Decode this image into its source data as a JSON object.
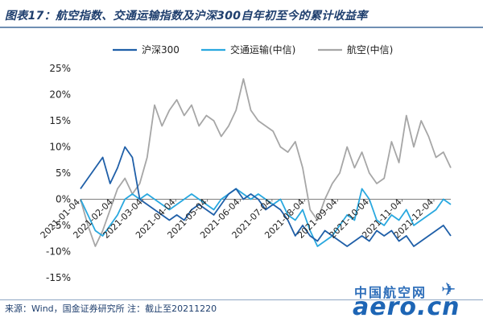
{
  "header": {
    "title": "图表17：航空指数、交通运输指数及沪深300自年初至今的累计收益率"
  },
  "footer": {
    "source": "来源：Wind，国金证券研究所  注：截止至20211220"
  },
  "watermark": {
    "cn": "中国航空网",
    "en": "aero.cn"
  },
  "chart_data": {
    "type": "line",
    "title": "",
    "xlabel": "",
    "ylabel": "",
    "ylim": [
      -15,
      25
    ],
    "yticks": [
      25,
      20,
      15,
      10,
      5,
      0,
      -5,
      -10,
      -15
    ],
    "ytick_labels": [
      "25%",
      "20%",
      "15%",
      "10%",
      "5%",
      "0%",
      "-5%",
      "-10%",
      "-15%"
    ],
    "x_tick_labels": [
      "2021-01-04",
      "2021-02-04",
      "2021-03-04",
      "2021-04-04",
      "2021-05-04",
      "2021-06-04",
      "2021-07-04",
      "2021-08-04",
      "2021-09-04",
      "2021-10-04",
      "2021-11-04",
      "2021-12-04"
    ],
    "grid": false,
    "legend_position": "top",
    "series": [
      {
        "name": "沪深300",
        "color": "#1f5fa8",
        "x": [
          "2021-01-04",
          "2021-01-11",
          "2021-01-18",
          "2021-01-25",
          "2021-02-01",
          "2021-02-08",
          "2021-02-15",
          "2021-02-22",
          "2021-03-01",
          "2021-03-08",
          "2021-03-15",
          "2021-03-22",
          "2021-03-29",
          "2021-04-05",
          "2021-04-12",
          "2021-04-19",
          "2021-04-26",
          "2021-05-03",
          "2021-05-10",
          "2021-05-17",
          "2021-05-24",
          "2021-05-31",
          "2021-06-07",
          "2021-06-14",
          "2021-06-21",
          "2021-06-28",
          "2021-07-05",
          "2021-07-12",
          "2021-07-19",
          "2021-07-26",
          "2021-08-02",
          "2021-08-09",
          "2021-08-16",
          "2021-08-23",
          "2021-08-30",
          "2021-09-06",
          "2021-09-13",
          "2021-09-20",
          "2021-09-27",
          "2021-10-04",
          "2021-10-11",
          "2021-10-18",
          "2021-10-25",
          "2021-11-01",
          "2021-11-08",
          "2021-11-15",
          "2021-11-22",
          "2021-11-29",
          "2021-12-06",
          "2021-12-13",
          "2021-12-20"
        ],
        "values": [
          2,
          4,
          6,
          8,
          3,
          6,
          10,
          8,
          0,
          -1,
          -2,
          -3,
          -4,
          -3,
          -4,
          -2,
          -1,
          -2,
          -3,
          -1,
          1,
          2,
          0,
          1,
          0,
          -2,
          -1,
          -2,
          -4,
          -7,
          -5,
          -7,
          -8,
          -6,
          -7,
          -8,
          -9,
          -8,
          -7,
          -8,
          -6,
          -7,
          -6,
          -8,
          -7,
          -9,
          -8,
          -7,
          -6,
          -5,
          -7
        ]
      },
      {
        "name": "交通运输(中信)",
        "color": "#29a8df",
        "x": [
          "2021-01-04",
          "2021-01-11",
          "2021-01-18",
          "2021-01-25",
          "2021-02-01",
          "2021-02-08",
          "2021-02-15",
          "2021-02-22",
          "2021-03-01",
          "2021-03-08",
          "2021-03-15",
          "2021-03-22",
          "2021-03-29",
          "2021-04-05",
          "2021-04-12",
          "2021-04-19",
          "2021-04-26",
          "2021-05-03",
          "2021-05-10",
          "2021-05-17",
          "2021-05-24",
          "2021-05-31",
          "2021-06-07",
          "2021-06-14",
          "2021-06-21",
          "2021-06-28",
          "2021-07-05",
          "2021-07-12",
          "2021-07-19",
          "2021-07-26",
          "2021-08-02",
          "2021-08-09",
          "2021-08-16",
          "2021-08-23",
          "2021-08-30",
          "2021-09-06",
          "2021-09-13",
          "2021-09-20",
          "2021-09-27",
          "2021-10-04",
          "2021-10-11",
          "2021-10-18",
          "2021-10-25",
          "2021-11-01",
          "2021-11-08",
          "2021-11-15",
          "2021-11-22",
          "2021-11-29",
          "2021-12-06",
          "2021-12-13",
          "2021-12-20"
        ],
        "values": [
          0,
          -3,
          -6,
          -7,
          -5,
          -3,
          0,
          1,
          0,
          1,
          0,
          -1,
          -2,
          -1,
          0,
          1,
          0,
          -1,
          -2,
          0,
          1,
          2,
          1,
          0,
          1,
          0,
          -1,
          0,
          -3,
          -4,
          -2,
          -6,
          -9,
          -8,
          -7,
          -5,
          -3,
          -4,
          2,
          0,
          -4,
          -5,
          -3,
          -4,
          -2,
          -5,
          -4,
          -3,
          -2,
          0,
          -1
        ]
      },
      {
        "name": "航空(中信)",
        "color": "#a6a6a6",
        "x": [
          "2021-01-04",
          "2021-01-11",
          "2021-01-18",
          "2021-01-25",
          "2021-02-01",
          "2021-02-08",
          "2021-02-15",
          "2021-02-22",
          "2021-03-01",
          "2021-03-08",
          "2021-03-15",
          "2021-03-22",
          "2021-03-29",
          "2021-04-05",
          "2021-04-12",
          "2021-04-19",
          "2021-04-26",
          "2021-05-03",
          "2021-05-10",
          "2021-05-17",
          "2021-05-24",
          "2021-05-31",
          "2021-06-07",
          "2021-06-14",
          "2021-06-21",
          "2021-06-28",
          "2021-07-05",
          "2021-07-12",
          "2021-07-19",
          "2021-07-26",
          "2021-08-02",
          "2021-08-09",
          "2021-08-16",
          "2021-08-23",
          "2021-08-30",
          "2021-09-06",
          "2021-09-13",
          "2021-09-20",
          "2021-09-27",
          "2021-10-04",
          "2021-10-11",
          "2021-10-18",
          "2021-10-25",
          "2021-11-01",
          "2021-11-08",
          "2021-11-15",
          "2021-11-22",
          "2021-11-29",
          "2021-12-06",
          "2021-12-13",
          "2021-12-20"
        ],
        "values": [
          0,
          -5,
          -9,
          -6,
          -2,
          2,
          4,
          1,
          3,
          8,
          18,
          14,
          17,
          19,
          16,
          18,
          14,
          16,
          15,
          12,
          14,
          17,
          23,
          17,
          15,
          14,
          13,
          10,
          9,
          11,
          6,
          -2,
          -4,
          0,
          3,
          5,
          10,
          6,
          9,
          5,
          3,
          4,
          11,
          7,
          16,
          10,
          15,
          12,
          8,
          9,
          6
        ]
      }
    ]
  }
}
